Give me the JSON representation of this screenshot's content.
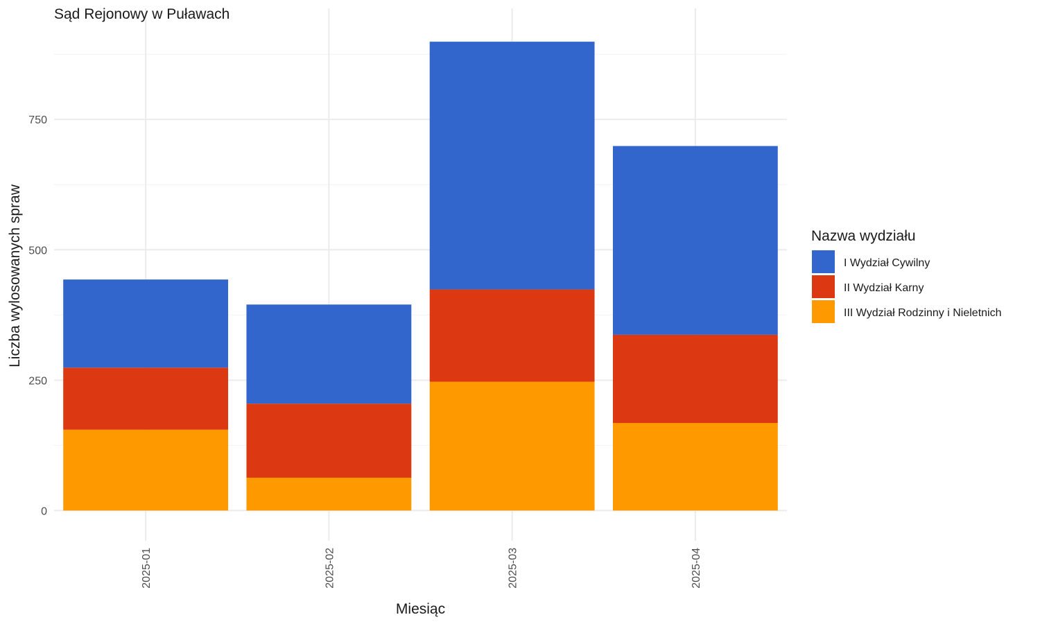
{
  "chart_data": {
    "type": "bar",
    "stacked": true,
    "title": "Sąd Rejonowy w Puławach",
    "xlabel": "Miesiąc",
    "ylabel": "Liczba wylosowanych spraw",
    "categories": [
      "2025-01",
      "2025-02",
      "2025-03",
      "2025-04"
    ],
    "ylim": [
      -58,
      963
    ],
    "yticks": [
      0,
      250,
      500,
      750
    ],
    "grid": true,
    "legend": {
      "title": "Nazwa wydziału",
      "position": "right"
    },
    "series": [
      {
        "name": "III Wydział Rodzinny i Nieletnich",
        "color": "#FF9900",
        "values": [
          155,
          63,
          247,
          168
        ]
      },
      {
        "name": "II Wydział Karny",
        "color": "#DC3912",
        "values": [
          119,
          142,
          177,
          169
        ]
      },
      {
        "name": "I Wydział Cywilny",
        "color": "#3366CC",
        "values": [
          169,
          190,
          475,
          362
        ]
      }
    ],
    "legend_order": [
      "I Wydział Cywilny",
      "II Wydział Karny",
      "III Wydział Rodzinny i Nieletnich"
    ]
  }
}
